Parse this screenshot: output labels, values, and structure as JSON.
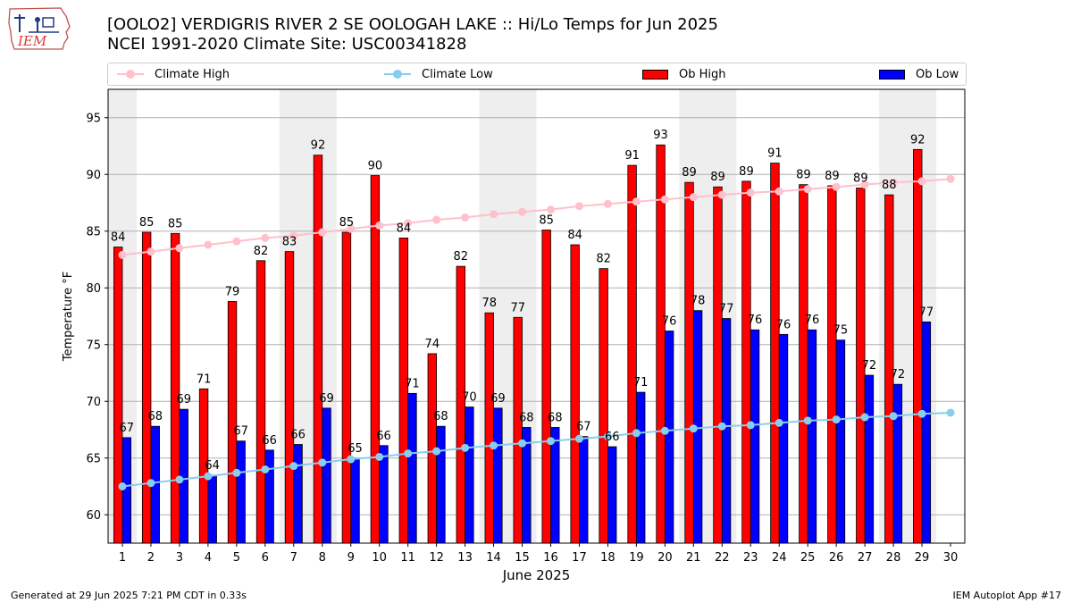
{
  "header": {
    "logo_text": "IEM",
    "title_line1": "[OOLO2] VERDIGRIS RIVER 2 SE OOLOGAH LAKE :: Hi/Lo Temps for Jun 2025",
    "title_line2": "NCEI 1991-2020 Climate Site: USC00341828"
  },
  "legend": {
    "climate_high": "Climate High",
    "climate_low": "Climate Low",
    "ob_high": "Ob High",
    "ob_low": "Ob Low"
  },
  "footer": {
    "left": "Generated at 29 Jun 2025 7:21 PM CDT in 0.33s",
    "right": "IEM Autoplot App #17"
  },
  "colors": {
    "ob_high": "#ff0000",
    "ob_low": "#0000ff",
    "climate_high": "#ffc0cb",
    "climate_low": "#87ceeb",
    "weekend_shade": "#eeeeee",
    "grid": "#b0b0b0"
  },
  "chart_data": {
    "type": "bar",
    "xlabel": "June 2025",
    "ylabel": "Temperature °F",
    "ylim": [
      57.5,
      97.5
    ],
    "yticks": [
      60,
      65,
      70,
      75,
      80,
      85,
      90,
      95
    ],
    "xlim": [
      0.5,
      30.5
    ],
    "days": [
      1,
      2,
      3,
      4,
      5,
      6,
      7,
      8,
      9,
      10,
      11,
      12,
      13,
      14,
      15,
      16,
      17,
      18,
      19,
      20,
      21,
      22,
      23,
      24,
      25,
      26,
      27,
      28,
      29,
      30
    ],
    "grid": "horizontal",
    "legend_position": "top",
    "shaded_days": [
      [
        1,
        1
      ],
      [
        7,
        8
      ],
      [
        14,
        15
      ],
      [
        21,
        22
      ],
      [
        28,
        29
      ]
    ],
    "series": [
      {
        "name": "Ob High",
        "kind": "bar",
        "values": [
          84,
          85,
          85,
          71,
          79,
          82,
          83,
          92,
          85,
          90,
          84,
          74,
          82,
          78,
          77,
          85,
          84,
          82,
          91,
          93,
          89,
          89,
          89,
          91,
          89,
          89,
          89,
          88,
          92
        ],
        "heights": [
          83.6,
          84.9,
          84.8,
          71.1,
          78.8,
          82.4,
          83.2,
          91.7,
          84.9,
          89.9,
          84.4,
          74.2,
          81.9,
          77.8,
          77.4,
          85.1,
          83.8,
          81.7,
          90.8,
          92.6,
          89.3,
          88.9,
          89.4,
          91.0,
          89.1,
          89.0,
          88.8,
          88.2,
          92.2
        ]
      },
      {
        "name": "Ob Low",
        "kind": "bar",
        "values": [
          67,
          68,
          69,
          64,
          67,
          66,
          66,
          69,
          65,
          66,
          71,
          68,
          70,
          69,
          68,
          68,
          67,
          66,
          71,
          76,
          78,
          77,
          76,
          76,
          76,
          75,
          72,
          72,
          77
        ],
        "heights": [
          66.8,
          67.8,
          69.3,
          63.5,
          66.5,
          65.7,
          66.2,
          69.4,
          65.0,
          66.1,
          70.7,
          67.8,
          69.5,
          69.4,
          67.7,
          67.7,
          66.9,
          66.0,
          70.8,
          76.2,
          78.0,
          77.3,
          76.3,
          75.9,
          76.3,
          75.4,
          72.3,
          71.5,
          77.0
        ]
      },
      {
        "name": "Climate High",
        "kind": "line",
        "values": [
          82.9,
          83.2,
          83.5,
          83.8,
          84.1,
          84.4,
          84.6,
          84.9,
          85.2,
          85.5,
          85.7,
          86.0,
          86.2,
          86.5,
          86.7,
          86.9,
          87.2,
          87.4,
          87.6,
          87.8,
          88.0,
          88.2,
          88.4,
          88.5,
          88.7,
          88.9,
          89.1,
          89.3,
          89.4,
          89.6
        ]
      },
      {
        "name": "Climate Low",
        "kind": "line",
        "values": [
          62.5,
          62.8,
          63.1,
          63.4,
          63.7,
          64.0,
          64.3,
          64.6,
          64.9,
          65.1,
          65.4,
          65.6,
          65.9,
          66.1,
          66.3,
          66.5,
          66.7,
          66.9,
          67.2,
          67.4,
          67.6,
          67.8,
          67.9,
          68.1,
          68.3,
          68.4,
          68.6,
          68.7,
          68.9,
          69.0
        ]
      }
    ]
  }
}
